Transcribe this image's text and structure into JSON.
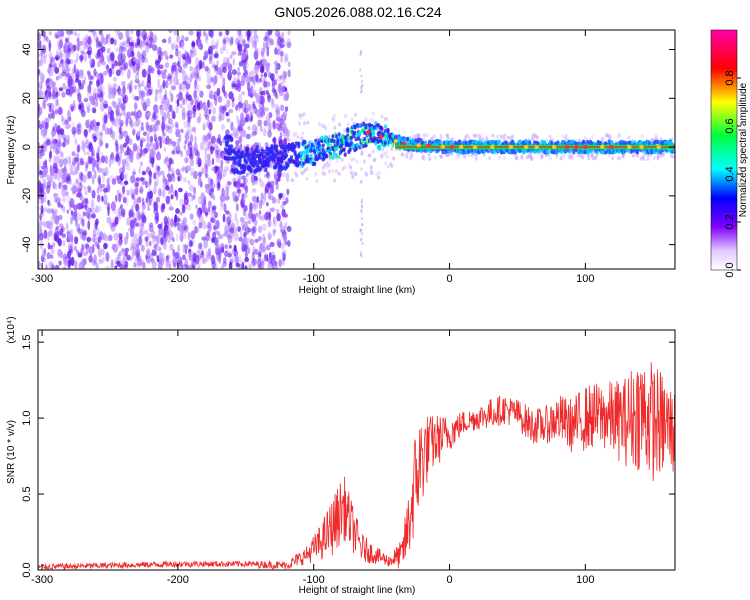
{
  "figure": {
    "title": "GN05.2026.088.02.16.C24"
  },
  "chart_data": [
    {
      "type": "heatmap",
      "title": "",
      "xlabel": "Height of straight line (km)",
      "ylabel": "Frequency (Hz)",
      "xlim": [
        -303,
        166
      ],
      "ylim": [
        -50,
        48
      ],
      "xticks": [
        -300,
        -200,
        -100,
        0,
        100
      ],
      "xtick_labels": [
        "-300",
        "-200",
        "-100",
        "0",
        "100"
      ],
      "yticks": [
        -40,
        -20,
        0,
        20,
        40
      ],
      "ytick_labels": [
        "-40",
        "-20",
        "0",
        "20",
        "40"
      ],
      "grid": false,
      "colorbar": {
        "label": "Normalized spectral amplitude",
        "range": [
          0,
          1
        ],
        "ticks": [
          0.0,
          0.2,
          0.4,
          0.6,
          0.8
        ],
        "tick_labels": [
          "0.0",
          "0.2",
          "0.4",
          "0.6",
          "0.8"
        ],
        "colormap": [
          "#ffffff",
          "#8000ff",
          "#0000ff",
          "#00ffff",
          "#00ff00",
          "#ffff00",
          "#ff0000",
          "#ff00ff"
        ]
      },
      "ridge": {
        "description_points": [
          [
            -160,
            -6
          ],
          [
            -120,
            -4
          ],
          [
            -100,
            -2
          ],
          [
            -80,
            1
          ],
          [
            -60,
            6
          ],
          [
            -50,
            4
          ],
          [
            -30,
            1
          ],
          [
            0,
            0
          ],
          [
            166,
            0
          ]
        ]
      },
      "noise_region_x": [
        -303,
        -118
      ],
      "colors": {
        "noise": "#7b2ff7",
        "ridge": "#00cfff",
        "line": "#ff2020"
      }
    },
    {
      "type": "line",
      "title": "",
      "xlabel": "Height of straight line (km)",
      "ylabel": "SNR (10 * v/v)",
      "y_multiplier_label": "(x10⁴)",
      "xlim": [
        -303,
        166
      ],
      "ylim": [
        0,
        1.58
      ],
      "xticks": [
        -300,
        -200,
        -100,
        0,
        100
      ],
      "xtick_labels": [
        "-300",
        "-200",
        "-100",
        "0",
        "100"
      ],
      "yticks": [
        0.0,
        0.5,
        1.0,
        1.5
      ],
      "ytick_labels": [
        "0.0",
        "0.5",
        "1.0",
        "1.5"
      ],
      "grid": false,
      "series": [
        {
          "color": "#ee2a2a",
          "x": [
            -303,
            -250,
            -200,
            -150,
            -120,
            -105,
            -95,
            -85,
            -78,
            -70,
            -65,
            -55,
            -45,
            -35,
            -30,
            -25,
            -20,
            -15,
            -10,
            0,
            10,
            20,
            30,
            40,
            50,
            60,
            70,
            80,
            90,
            100,
            110,
            120,
            130,
            140,
            150,
            160,
            166
          ],
          "y": [
            0.02,
            0.03,
            0.04,
            0.04,
            0.03,
            0.1,
            0.18,
            0.3,
            0.42,
            0.25,
            0.15,
            0.1,
            0.06,
            0.1,
            0.3,
            0.6,
            0.75,
            0.82,
            0.85,
            0.9,
            0.97,
            1.0,
            1.03,
            1.06,
            1.03,
            0.95,
            0.95,
            1.0,
            0.95,
            1.0,
            1.02,
            1.0,
            0.98,
            1.05,
            0.98,
            0.95,
            0.9
          ],
          "noise_amplitude": [
            0.02,
            0.02,
            0.02,
            0.02,
            0.03,
            0.06,
            0.12,
            0.2,
            0.22,
            0.15,
            0.1,
            0.06,
            0.04,
            0.1,
            0.25,
            0.35,
            0.32,
            0.2,
            0.18,
            0.12,
            0.08,
            0.08,
            0.1,
            0.1,
            0.1,
            0.12,
            0.12,
            0.16,
            0.18,
            0.22,
            0.22,
            0.25,
            0.3,
            0.4,
            0.4,
            0.32,
            0.3
          ]
        }
      ]
    }
  ]
}
